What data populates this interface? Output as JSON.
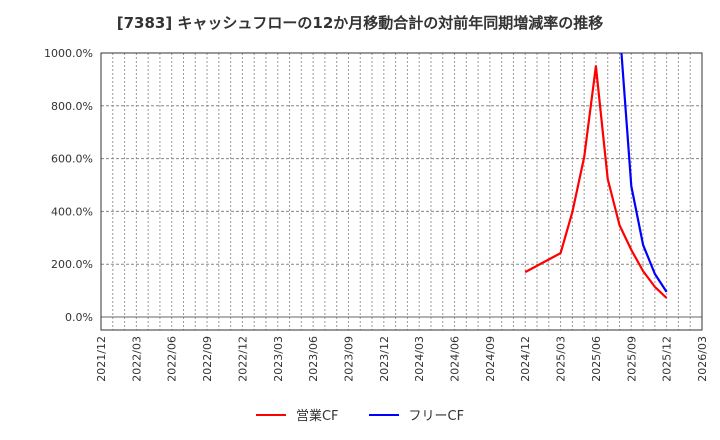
{
  "title": "[7383]  キャッシュフローの12か月移動合計の対前年同期増減率の推移",
  "legend": [
    {
      "label": "営業CF",
      "color": "#ff0000"
    },
    {
      "label": "フリーCF",
      "color": "#0000ff"
    }
  ],
  "chart_data": {
    "type": "line",
    "title": "[7383]  キャッシュフローの12か月移動合計の対前年同期増減率の推移",
    "xlabel": "",
    "ylabel": "",
    "ylim": [
      -50,
      1000
    ],
    "yticks": [
      "0.0%",
      "200.0%",
      "400.0%",
      "600.0%",
      "800.0%",
      "1000.0%"
    ],
    "ytick_values": [
      0,
      200,
      400,
      600,
      800,
      1000
    ],
    "xticks": [
      "2021/12",
      "2022/03",
      "2022/06",
      "2022/09",
      "2022/12",
      "2023/03",
      "2023/06",
      "2023/09",
      "2023/12",
      "2024/03",
      "2024/06",
      "2024/09",
      "2024/12",
      "2025/03",
      "2025/06",
      "2025/09",
      "2025/12",
      "2026/03"
    ],
    "grid": true,
    "legend_position": "bottom",
    "series": [
      {
        "name": "営業CF",
        "color": "#ff0000",
        "x": [
          "2024/12",
          "2025/03",
          "2025/04",
          "2025/05",
          "2025/06",
          "2025/07",
          "2025/08",
          "2025/09",
          "2025/10",
          "2025/11",
          "2025/12"
        ],
        "values": [
          170,
          242,
          398,
          606,
          950,
          523,
          348,
          254,
          174,
          114,
          72
        ]
      },
      {
        "name": "フリーCF",
        "color": "#0000ff",
        "x": [
          "2025/08",
          "2025/09",
          "2025/10",
          "2025/11",
          "2025/12"
        ],
        "values": [
          1000,
          496,
          273,
          163,
          95
        ],
        "note_first_point_clipped_above_axis": true
      }
    ]
  }
}
